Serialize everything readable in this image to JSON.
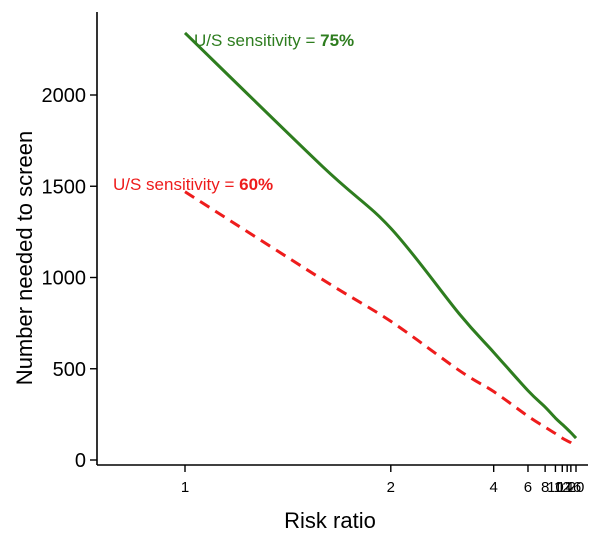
{
  "chart_data": {
    "type": "line",
    "xlabel": "Risk ratio",
    "ylabel": "Number needed to screen",
    "x_scale": "reciprocal",
    "xlim": [
      1,
      20
    ],
    "ylim": [
      0,
      2400
    ],
    "x_ticks": [
      1,
      2,
      4,
      6,
      8,
      10,
      12,
      14,
      16,
      20
    ],
    "x_tick_labels": [
      "1",
      "2",
      "4",
      "6",
      "8",
      "10",
      "12",
      "14",
      "16",
      "20"
    ],
    "y_ticks": [
      0,
      500,
      1000,
      1500,
      2000
    ],
    "y_tick_labels": [
      "0",
      "500",
      "1000",
      "1500",
      "2000"
    ],
    "grid": false,
    "legend": "none",
    "series": [
      {
        "name": "U/S sensitivity = 75%",
        "color": "#2e7d1f",
        "style": "solid",
        "x": [
          1,
          1.5,
          2,
          3,
          4,
          6,
          8,
          10,
          12,
          14,
          16,
          20
        ],
        "y": [
          2340,
          1610,
          1270,
          800,
          590,
          380,
          290,
          230,
          195,
          170,
          150,
          120
        ]
      },
      {
        "name": "U/S sensitivity = 60%",
        "color": "#ee1c1c",
        "style": "dashed",
        "x": [
          1,
          1.5,
          2,
          3,
          4,
          6,
          8,
          10,
          12,
          14,
          16,
          20
        ],
        "y": [
          1470,
          990,
          760,
          490,
          375,
          240,
          180,
          145,
          120,
          105,
          95,
          75
        ]
      }
    ],
    "annotations": [
      {
        "prefix": "U/S sensitivity = ",
        "value": "75%",
        "color": "#2e7d1f"
      },
      {
        "prefix": "U/S sensitivity = ",
        "value": "60%",
        "color": "#ee1c1c"
      }
    ]
  }
}
